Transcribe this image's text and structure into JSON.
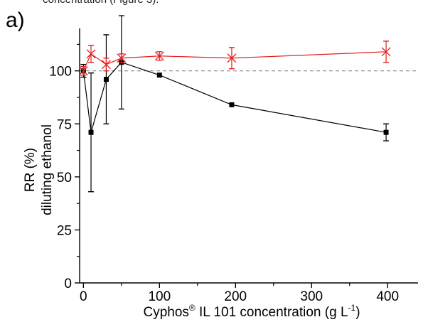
{
  "top_text": "concentration (Figure 3).",
  "panel_label": "a)",
  "chart_data": {
    "type": "scatter",
    "xlabel_main": "Cyphos",
    "xlabel_sup": "®",
    "xlabel_rest": " IL 101 concentration (g L",
    "xlabel_exp": "-1",
    "xlabel_end": ")",
    "ylabel_line1": "RR (%)",
    "ylabel_line2": "diluting ethanol",
    "xlim": [
      -5,
      440
    ],
    "ylim": [
      0,
      120
    ],
    "xticks": [
      0,
      100,
      200,
      300,
      400
    ],
    "yticks": [
      0,
      25,
      50,
      75,
      100
    ],
    "reference_line": 100,
    "series": [
      {
        "marker": "square",
        "color": "#000000",
        "points": [
          {
            "x": 0,
            "y": 100,
            "err": 3
          },
          {
            "x": 10,
            "y": 71,
            "err": 28
          },
          {
            "x": 30,
            "y": 96,
            "err": 21
          },
          {
            "x": 50,
            "y": 104,
            "err": 22
          },
          {
            "x": 100,
            "y": 98,
            "err": 0
          },
          {
            "x": 195,
            "y": 84,
            "err": 0
          },
          {
            "x": 398,
            "y": 71,
            "err": 4
          }
        ]
      },
      {
        "marker": "x",
        "color": "#e32020",
        "points": [
          {
            "x": 0,
            "y": 100,
            "err": 2
          },
          {
            "x": 10,
            "y": 108,
            "err": 4
          },
          {
            "x": 30,
            "y": 103,
            "err": 3
          },
          {
            "x": 50,
            "y": 106,
            "err": 2
          },
          {
            "x": 100,
            "y": 107,
            "err": 2
          },
          {
            "x": 195,
            "y": 106,
            "err": 5
          },
          {
            "x": 398,
            "y": 109,
            "err": 5
          }
        ]
      }
    ]
  }
}
